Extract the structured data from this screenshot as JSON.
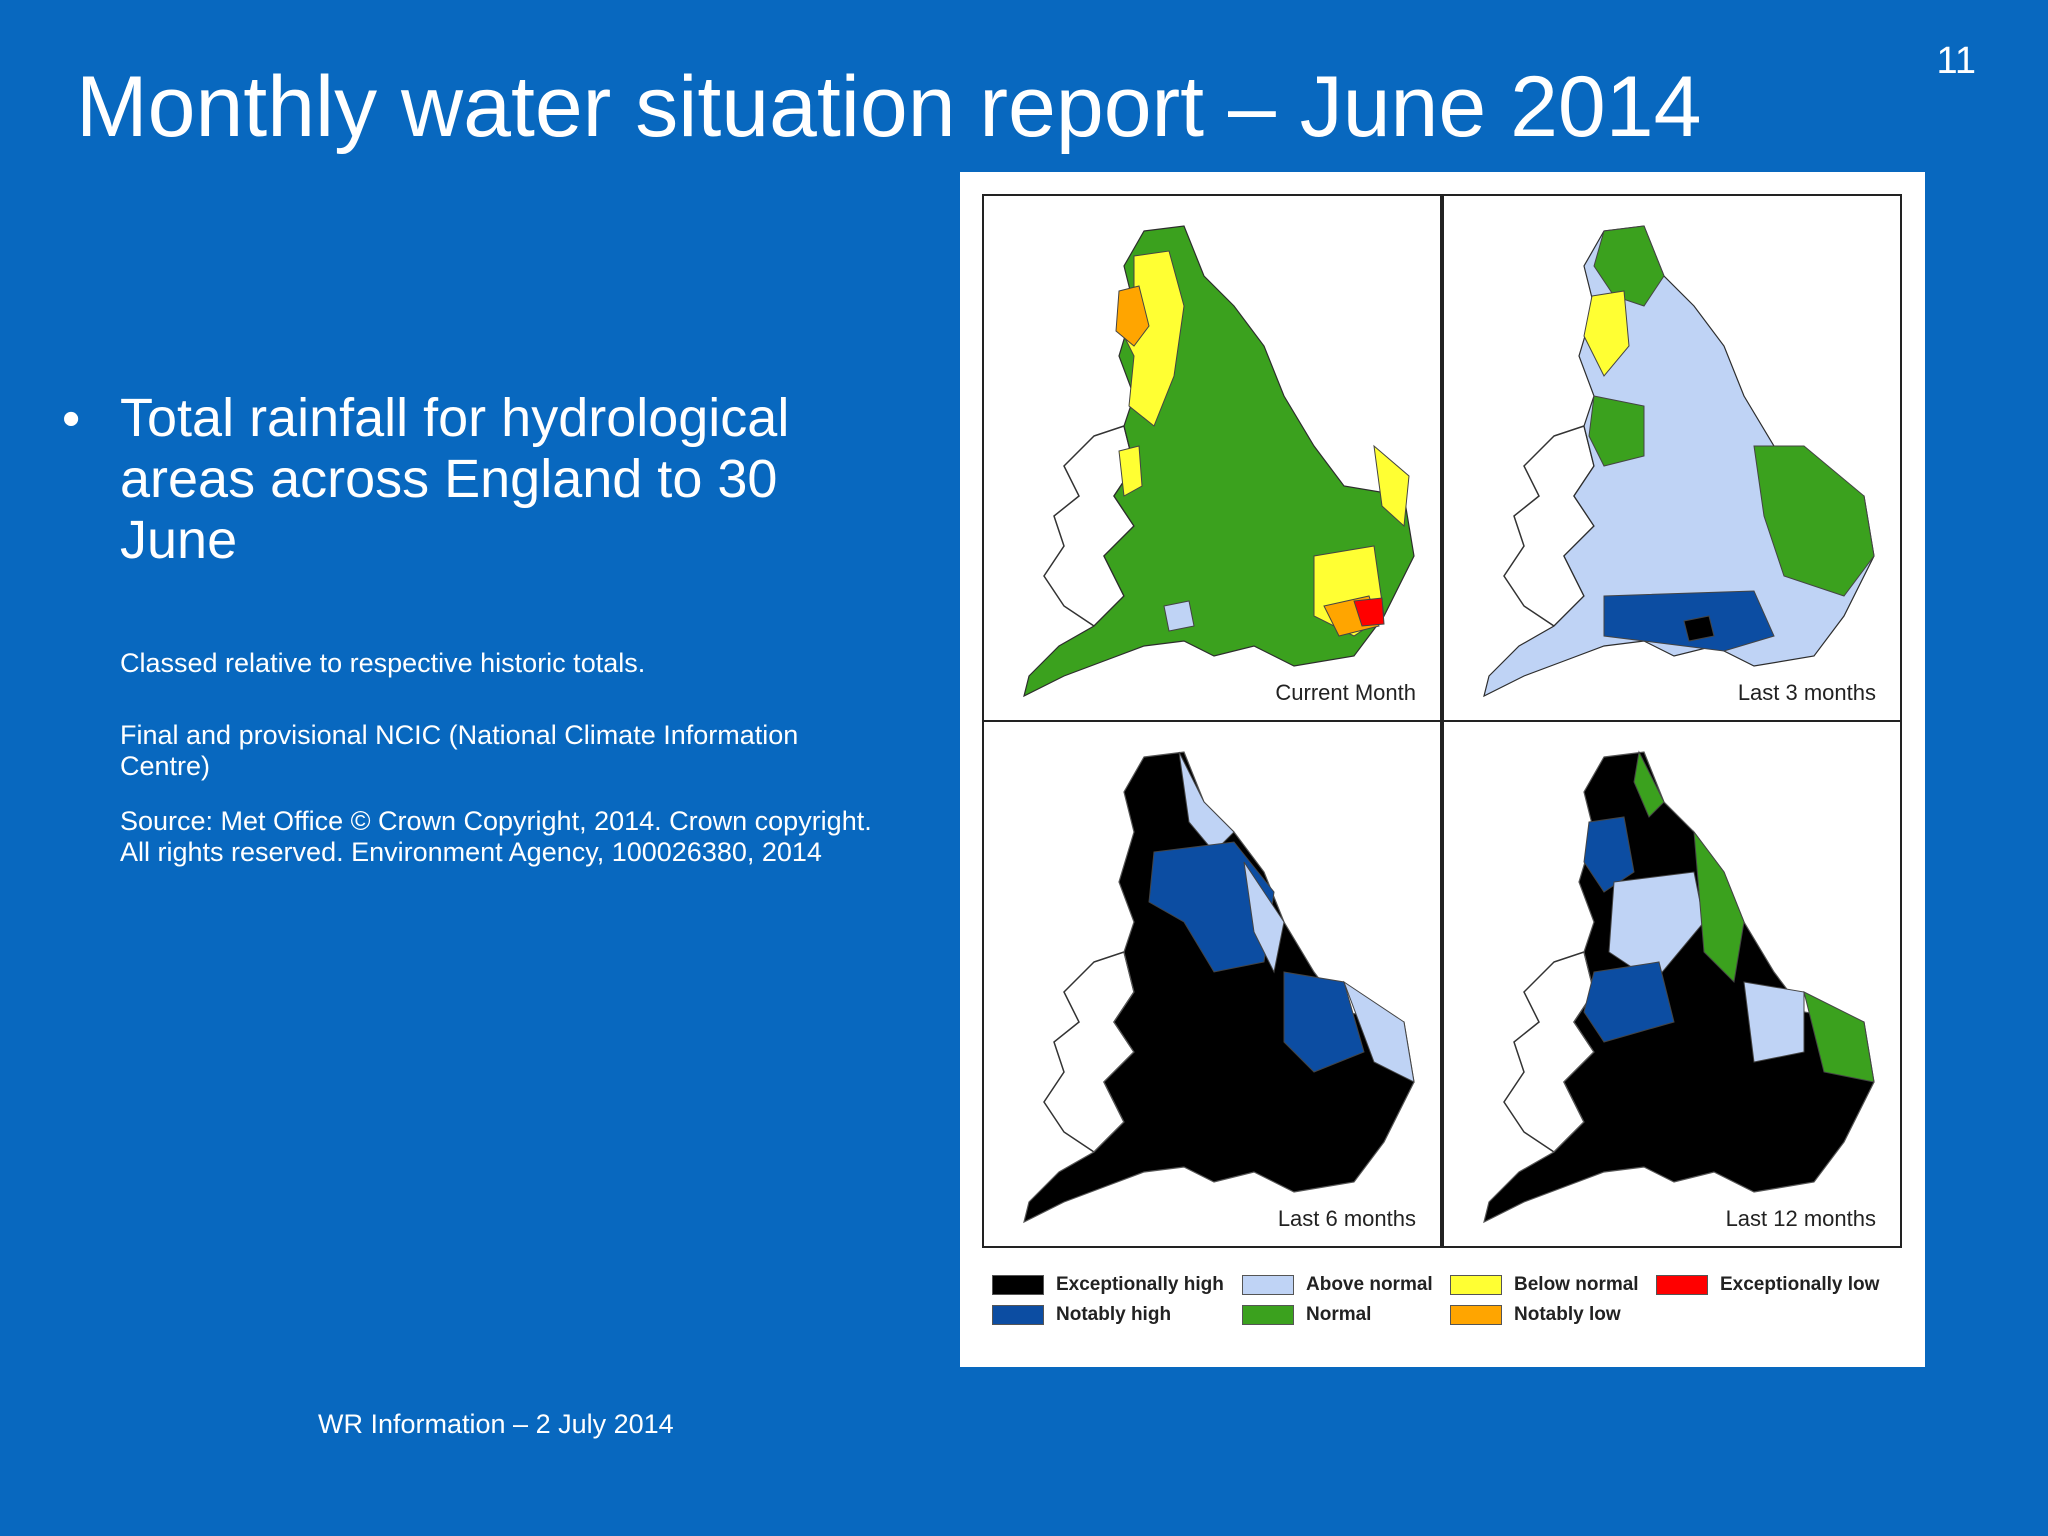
{
  "slide": {
    "number": "11",
    "title": "Monthly water situation report – June 2014",
    "bullet": "Total rainfall for hydrological areas across England to 30 June",
    "notes": [
      "Classed relative to respective historic totals.",
      "Final and provisional NCIC (National Climate Information Centre)",
      "Source: Met Office © Crown Copyright, 2014. Crown copyright. All rights reserved. Environment Agency, 100026380, 2014"
    ],
    "footer": "WR Information – 2 July 2014"
  },
  "map_panels": [
    {
      "label": "Current Month",
      "dominant": "normal"
    },
    {
      "label": "Last 3 months",
      "dominant": "above-normal"
    },
    {
      "label": "Last 6 months",
      "dominant": "exceptionally-high"
    },
    {
      "label": "Last 12 months",
      "dominant": "exceptionally-high"
    }
  ],
  "legend": [
    {
      "label": "Exceptionally high",
      "color": "#000000"
    },
    {
      "label": "Notably high",
      "color": "#0c4da2"
    },
    {
      "label": "Above normal",
      "color": "#bfd3f5"
    },
    {
      "label": "Normal",
      "color": "#3ba11e"
    },
    {
      "label": "Below normal",
      "color": "#ffff33"
    },
    {
      "label": "Notably low",
      "color": "#ffa500"
    },
    {
      "label": "Exceptionally low",
      "color": "#ff0000"
    }
  ]
}
